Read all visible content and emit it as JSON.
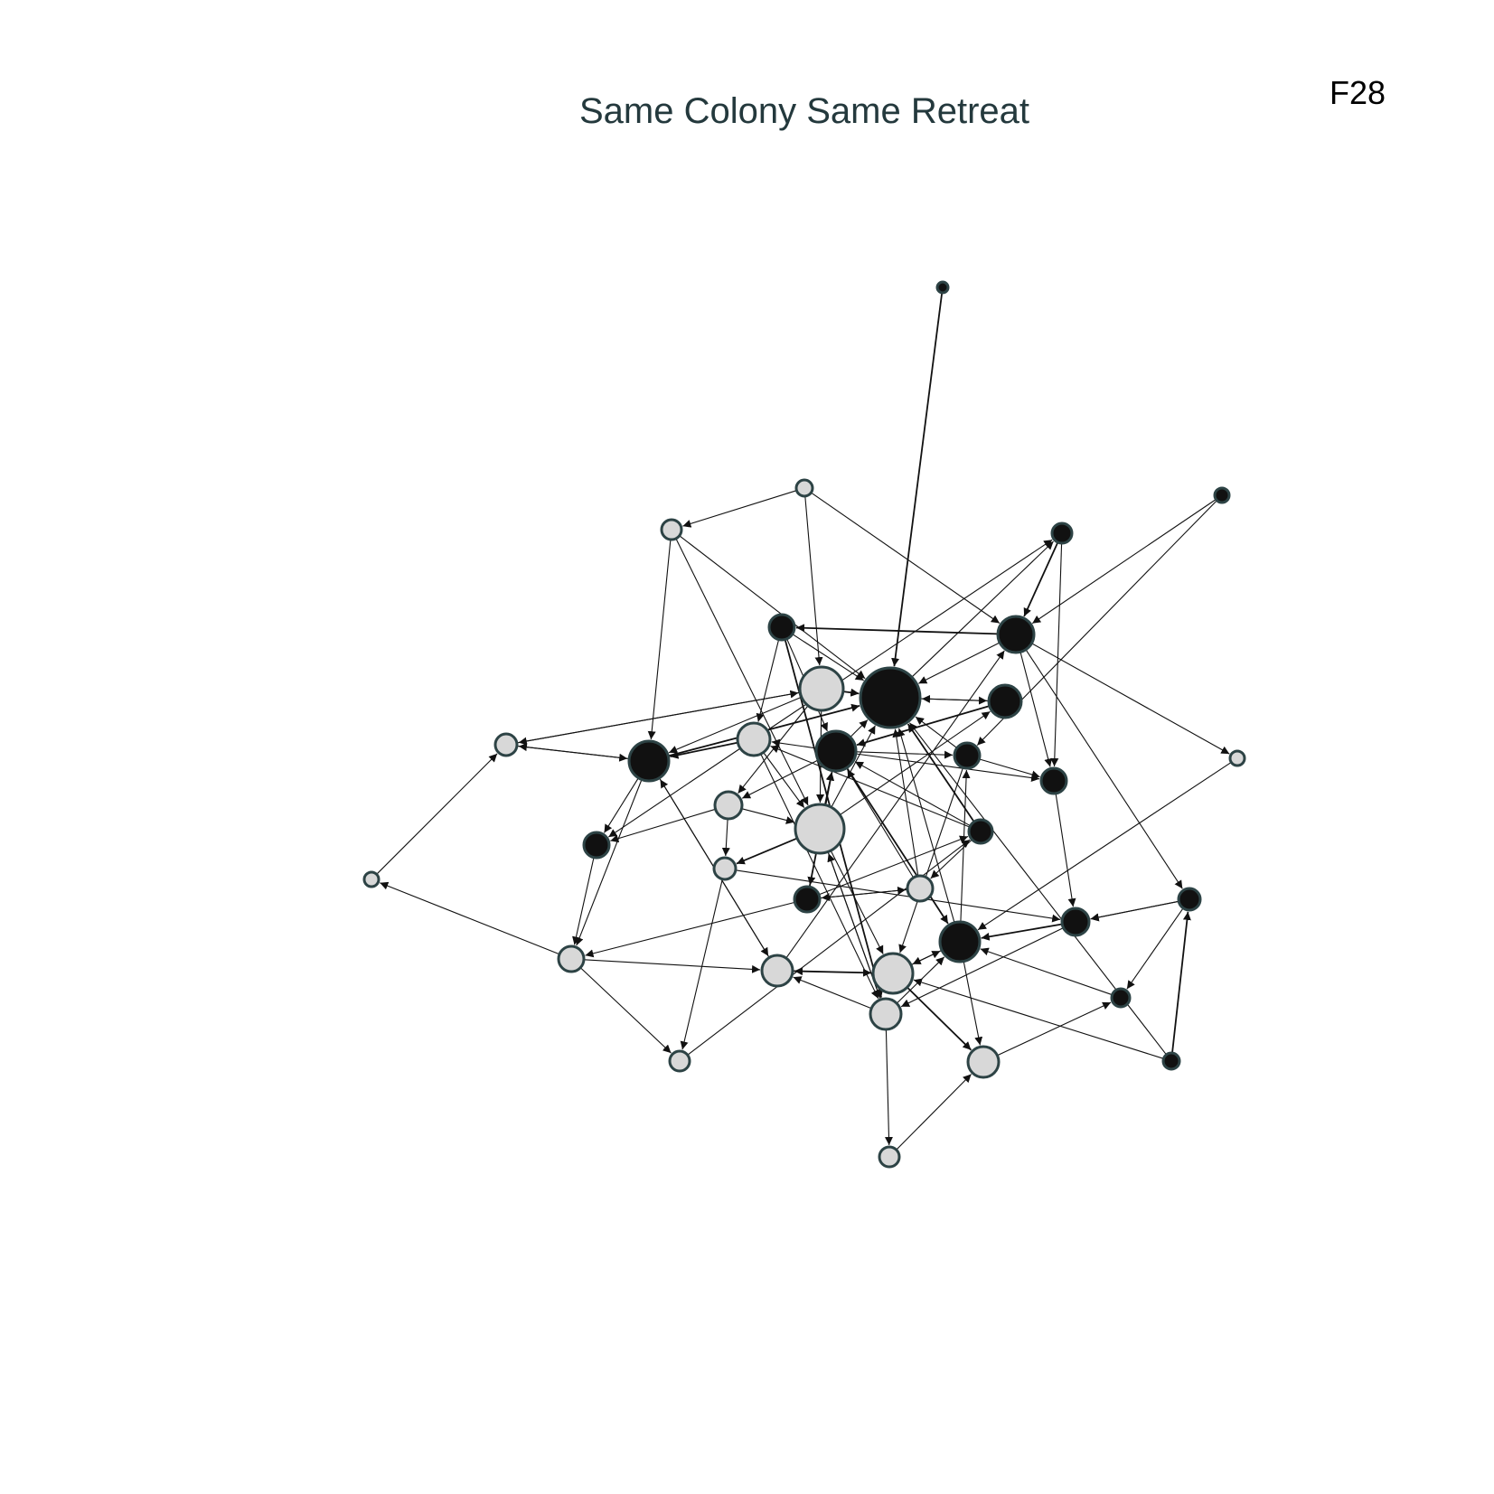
{
  "title": "Same Colony Same Retreat",
  "panel_label": "F28",
  "colors": {
    "black_node": "#111111",
    "grey_node": "#d8d8d8",
    "node_stroke": "#2d4345",
    "edge": "#111111",
    "title": "#24393d"
  }
}
